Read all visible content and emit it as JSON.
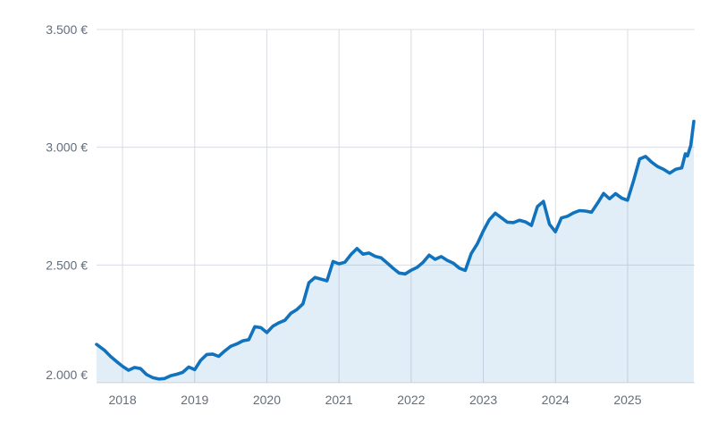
{
  "chart_data": {
    "type": "area",
    "title": "",
    "currency_symbol": "€",
    "grid": true,
    "legend": "none",
    "colors": {
      "line": "#1173bd",
      "fill": "rgba(18,115,190,0.12)",
      "gridline": "#d8dce2",
      "tick_label": "#636e7d",
      "background": "#ffffff"
    },
    "y_axis": {
      "min": 2000,
      "max": 3500,
      "ticks": [
        {
          "value": 2000,
          "label": "2.000 €"
        },
        {
          "value": 2500,
          "label": "2.500 €"
        },
        {
          "value": 3000,
          "label": "3.000 €"
        },
        {
          "value": 3500,
          "label": "3.500 €"
        }
      ]
    },
    "x_axis": {
      "min": 2017.64,
      "max": 2025.93,
      "ticks": [
        {
          "value": 2018,
          "label": "2018"
        },
        {
          "value": 2019,
          "label": "2019"
        },
        {
          "value": 2020,
          "label": "2020"
        },
        {
          "value": 2021,
          "label": "2021"
        },
        {
          "value": 2022,
          "label": "2022"
        },
        {
          "value": 2023,
          "label": "2023"
        },
        {
          "value": 2024,
          "label": "2024"
        },
        {
          "value": 2025,
          "label": "2025"
        }
      ]
    },
    "series": [
      {
        "name": "price-eur",
        "points": [
          [
            2017.64,
            2163
          ],
          [
            2017.75,
            2138
          ],
          [
            2017.833,
            2112
          ],
          [
            2017.917,
            2090
          ],
          [
            2018.0,
            2070
          ],
          [
            2018.083,
            2053
          ],
          [
            2018.167,
            2065
          ],
          [
            2018.25,
            2060
          ],
          [
            2018.333,
            2035
          ],
          [
            2018.417,
            2022
          ],
          [
            2018.5,
            2016
          ],
          [
            2018.583,
            2018
          ],
          [
            2018.667,
            2030
          ],
          [
            2018.75,
            2036
          ],
          [
            2018.833,
            2044
          ],
          [
            2018.917,
            2067
          ],
          [
            2019.0,
            2056
          ],
          [
            2019.083,
            2095
          ],
          [
            2019.167,
            2120
          ],
          [
            2019.25,
            2122
          ],
          [
            2019.333,
            2112
          ],
          [
            2019.417,
            2135
          ],
          [
            2019.5,
            2155
          ],
          [
            2019.583,
            2165
          ],
          [
            2019.667,
            2178
          ],
          [
            2019.75,
            2183
          ],
          [
            2019.833,
            2238
          ],
          [
            2019.917,
            2234
          ],
          [
            2020.0,
            2213
          ],
          [
            2020.083,
            2240
          ],
          [
            2020.167,
            2255
          ],
          [
            2020.25,
            2265
          ],
          [
            2020.333,
            2295
          ],
          [
            2020.417,
            2311
          ],
          [
            2020.5,
            2335
          ],
          [
            2020.583,
            2425
          ],
          [
            2020.667,
            2447
          ],
          [
            2020.75,
            2440
          ],
          [
            2020.833,
            2433
          ],
          [
            2020.917,
            2515
          ],
          [
            2021.0,
            2505
          ],
          [
            2021.083,
            2512
          ],
          [
            2021.167,
            2545
          ],
          [
            2021.25,
            2570
          ],
          [
            2021.333,
            2546
          ],
          [
            2021.417,
            2551
          ],
          [
            2021.5,
            2537
          ],
          [
            2021.583,
            2531
          ],
          [
            2021.667,
            2509
          ],
          [
            2021.75,
            2486
          ],
          [
            2021.833,
            2466
          ],
          [
            2021.917,
            2462
          ],
          [
            2022.0,
            2478
          ],
          [
            2022.083,
            2490
          ],
          [
            2022.167,
            2512
          ],
          [
            2022.25,
            2542
          ],
          [
            2022.333,
            2524
          ],
          [
            2022.417,
            2536
          ],
          [
            2022.5,
            2520
          ],
          [
            2022.583,
            2508
          ],
          [
            2022.667,
            2487
          ],
          [
            2022.75,
            2477
          ],
          [
            2022.833,
            2549
          ],
          [
            2022.917,
            2590
          ],
          [
            2023.0,
            2645
          ],
          [
            2023.083,
            2692
          ],
          [
            2023.167,
            2720
          ],
          [
            2023.25,
            2701
          ],
          [
            2023.333,
            2682
          ],
          [
            2023.417,
            2680
          ],
          [
            2023.5,
            2690
          ],
          [
            2023.583,
            2683
          ],
          [
            2023.667,
            2668
          ],
          [
            2023.75,
            2748
          ],
          [
            2023.833,
            2770
          ],
          [
            2023.917,
            2673
          ],
          [
            2024.0,
            2641
          ],
          [
            2024.083,
            2700
          ],
          [
            2024.167,
            2707
          ],
          [
            2024.25,
            2721
          ],
          [
            2024.333,
            2731
          ],
          [
            2024.417,
            2729
          ],
          [
            2024.5,
            2724
          ],
          [
            2024.583,
            2762
          ],
          [
            2024.667,
            2804
          ],
          [
            2024.75,
            2781
          ],
          [
            2024.833,
            2803
          ],
          [
            2024.917,
            2784
          ],
          [
            2025.0,
            2775
          ],
          [
            2025.083,
            2858
          ],
          [
            2025.167,
            2950
          ],
          [
            2025.25,
            2961
          ],
          [
            2025.333,
            2937
          ],
          [
            2025.417,
            2918
          ],
          [
            2025.5,
            2906
          ],
          [
            2025.583,
            2890
          ],
          [
            2025.667,
            2907
          ],
          [
            2025.75,
            2912
          ],
          [
            2025.8,
            2972
          ],
          [
            2025.83,
            2963
          ],
          [
            2025.875,
            3008
          ],
          [
            2025.917,
            3110
          ]
        ]
      }
    ]
  }
}
